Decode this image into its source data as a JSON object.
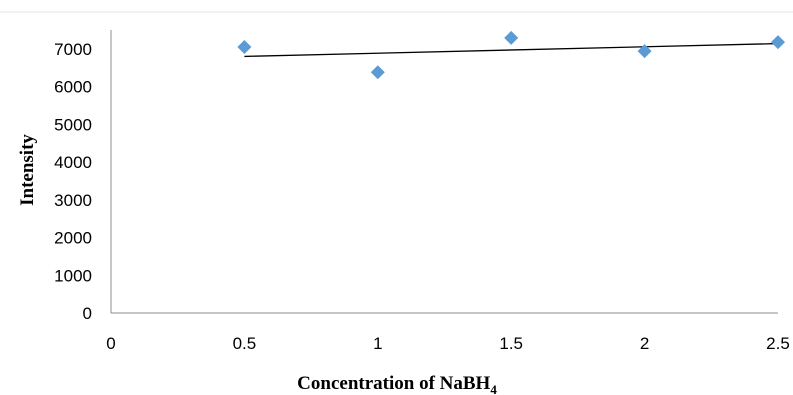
{
  "chart_data": {
    "type": "scatter",
    "title": "",
    "xlabel": "Concentration of NaBH",
    "xlabel_subscript": "4",
    "ylabel": "Intensity",
    "xlim": [
      0,
      2.5
    ],
    "ylim": [
      0,
      7500
    ],
    "x_ticks": [
      "0",
      "0.5",
      "1",
      "1.5",
      "2",
      "2.5"
    ],
    "y_ticks": [
      "0",
      "1000",
      "2000",
      "3000",
      "4000",
      "5000",
      "6000",
      "7000"
    ],
    "grid": false,
    "legend": "none",
    "series": [
      {
        "marker": "diamond",
        "color": "#5b9bd5",
        "points": [
          {
            "x": 0.5,
            "y": 7050
          },
          {
            "x": 1.0,
            "y": 6380
          },
          {
            "x": 1.5,
            "y": 7290
          },
          {
            "x": 2.0,
            "y": 6940
          },
          {
            "x": 2.5,
            "y": 7180
          }
        ]
      }
    ],
    "trendline": {
      "type": "linear",
      "color": "#000000",
      "from": {
        "x": 0.5,
        "y": 6800
      },
      "to": {
        "x": 2.5,
        "y": 7140
      }
    }
  }
}
